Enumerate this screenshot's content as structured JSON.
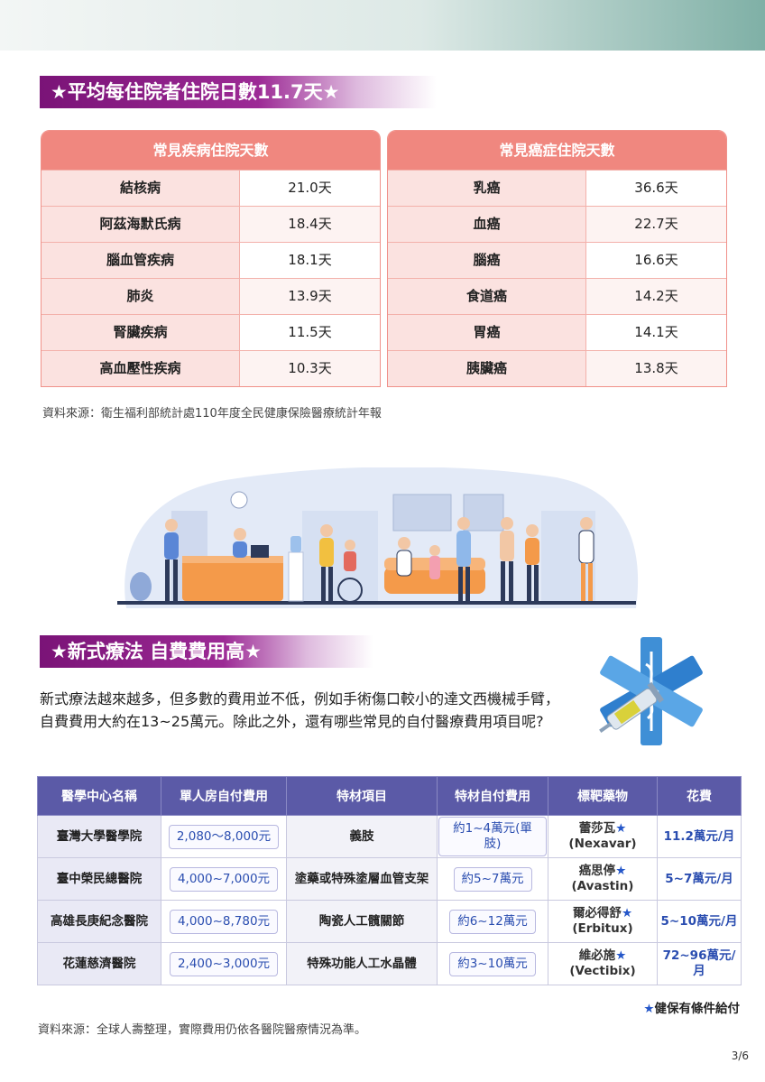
{
  "section1": {
    "title": "★平均每住院者住院日數11.7天★",
    "left_table": {
      "header": "常見疾病住院天數",
      "rows": [
        {
          "label": "結核病",
          "value": "21.0天"
        },
        {
          "label": "阿茲海默氏病",
          "value": "18.4天"
        },
        {
          "label": "腦血管疾病",
          "value": "18.1天"
        },
        {
          "label": "肺炎",
          "value": "13.9天"
        },
        {
          "label": "腎臟疾病",
          "value": "11.5天"
        },
        {
          "label": "高血壓性疾病",
          "value": "10.3天"
        }
      ]
    },
    "right_table": {
      "header": "常見癌症住院天數",
      "rows": [
        {
          "label": "乳癌",
          "value": "36.6天"
        },
        {
          "label": "血癌",
          "value": "22.7天"
        },
        {
          "label": "腦癌",
          "value": "16.6天"
        },
        {
          "label": "食道癌",
          "value": "14.2天"
        },
        {
          "label": "胃癌",
          "value": "14.1天"
        },
        {
          "label": "胰臟癌",
          "value": "13.8天"
        }
      ]
    },
    "source": "資料來源：衛生福利部統計處110年度全民健康保險醫療統計年報"
  },
  "section2": {
    "title": "★新式療法 自費費用高★",
    "paragraph": "新式療法越來越多，但多數的費用並不低，例如手術傷口較小的達文西機械手臂，自費費用大約在13~25萬元。除此之外，還有哪些常見的自付醫療費用項目呢?",
    "table": {
      "headers": [
        "醫學中心名稱",
        "單人房自付費用",
        "特材項目",
        "特材自付費用",
        "標靶藥物",
        "花費"
      ],
      "rows": [
        {
          "hospital": "臺灣大學醫學院",
          "room": "2,080〜8,000元",
          "item": "義肢",
          "item_fee": "約1~4萬元(單肢)",
          "drug": "蕾莎瓦",
          "drug_en": "(Nexavar)",
          "cost": "11.2萬元/月"
        },
        {
          "hospital": "臺中榮民總醫院",
          "room": "4,000~7,000元",
          "item": "塗藥或特殊塗層血管支架",
          "item_fee": "約5~7萬元",
          "drug": "癌思停",
          "drug_en": "(Avastin)",
          "cost": "5~7萬元/月"
        },
        {
          "hospital": "高雄長庚紀念醫院",
          "room": "4,000~8,780元",
          "item": "陶瓷人工髖關節",
          "item_fee": "約6~12萬元",
          "drug": "爾必得舒",
          "drug_en": "(Erbitux)",
          "cost": "5~10萬元/月"
        },
        {
          "hospital": "花蓮慈濟醫院",
          "room": "2,400~3,000元",
          "item": "特殊功能人工水晶體",
          "item_fee": "約3~10萬元",
          "drug": "維必施",
          "drug_en": "(Vectibix)",
          "cost": "72~96萬元/月"
        }
      ]
    },
    "footnote": "健保有條件給付",
    "source": "資料來源：全球人壽整理，實際費用仍依各醫院醫療情況為準。"
  },
  "page_number": "3/6",
  "colors": {
    "title_purple": "#7a1377",
    "table_header_salmon": "#f0877f",
    "table_header_indigo": "#5b5aa7",
    "star_blue": "#2557c9"
  },
  "icons": {
    "illustration": "hospital-reception-scene",
    "medical": "star-of-life-with-syringe-icon"
  }
}
